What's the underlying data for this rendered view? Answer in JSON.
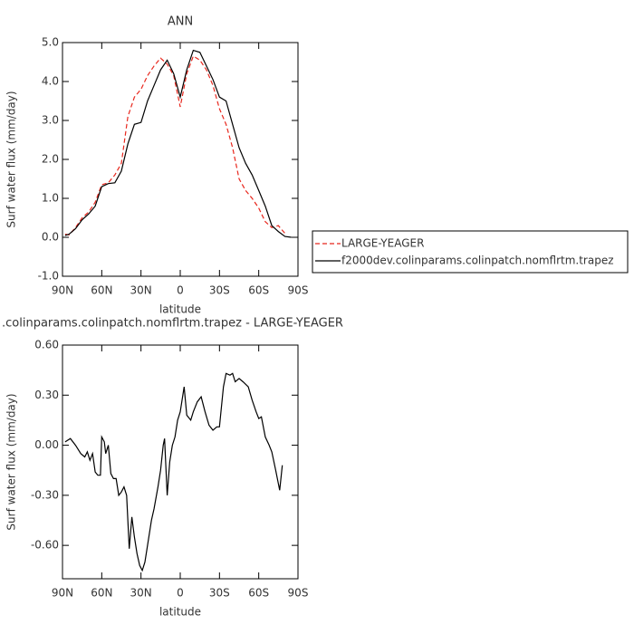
{
  "chart_data": [
    {
      "type": "line",
      "title": "ANN",
      "xlabel": "latitude",
      "ylabel": "Surf water flux (mm/day)",
      "x": [
        88,
        85,
        80,
        75,
        70,
        65,
        60,
        55,
        50,
        45,
        40,
        35,
        30,
        25,
        20,
        15,
        10,
        5,
        0,
        -5,
        -10,
        -15,
        -20,
        -25,
        -30,
        -35,
        -40,
        -45,
        -50,
        -55,
        -60,
        -65,
        -70,
        -75,
        -80,
        -85
      ],
      "series": [
        {
          "name": "LARGE-YEAGER",
          "color": "#e8261c",
          "linestyle": "dashed",
          "values": [
            0.08,
            0.06,
            0.25,
            0.5,
            0.65,
            0.9,
            1.35,
            1.4,
            1.6,
            1.9,
            3.1,
            3.6,
            3.8,
            4.15,
            4.4,
            4.6,
            4.45,
            4.15,
            3.35,
            4.2,
            4.65,
            4.55,
            4.3,
            3.9,
            3.3,
            2.9,
            2.3,
            1.5,
            1.2,
            1.0,
            0.75,
            0.4,
            0.25,
            0.3,
            0.1,
            null
          ]
        },
        {
          "name": "f2000dev.colinparams.colinpatch.nomflrtm.trapez",
          "color": "#000000",
          "linestyle": "solid",
          "values": [
            0.05,
            0.08,
            0.22,
            0.45,
            0.6,
            0.8,
            1.3,
            1.38,
            1.4,
            1.7,
            2.4,
            2.9,
            2.95,
            3.5,
            3.9,
            4.3,
            4.55,
            4.2,
            3.6,
            4.3,
            4.8,
            4.75,
            4.4,
            4.05,
            3.6,
            3.5,
            2.9,
            2.3,
            1.9,
            1.6,
            1.2,
            0.8,
            0.3,
            0.15,
            0.02,
            0.0
          ]
        }
      ],
      "xlim": [
        90,
        -90
      ],
      "xticks": [
        {
          "value": 90,
          "label": "90N"
        },
        {
          "value": 60,
          "label": "60N"
        },
        {
          "value": 30,
          "label": "30N"
        },
        0,
        {
          "value": -30,
          "label": "30S"
        },
        {
          "value": -60,
          "label": "60S"
        },
        {
          "value": -90,
          "label": "90S"
        }
      ],
      "ylim": [
        -1,
        5
      ],
      "yticks": [
        {
          "value": -1,
          "label": "-1.0"
        },
        {
          "value": 0,
          "label": "0.0"
        },
        {
          "value": 1,
          "label": "1.0"
        },
        {
          "value": 2,
          "label": "2.0"
        },
        {
          "value": 3,
          "label": "3.0"
        },
        {
          "value": 4,
          "label": "4.0"
        },
        {
          "value": 5,
          "label": "5.0"
        }
      ],
      "legend": "right"
    },
    {
      "type": "line",
      "title": ".colinparams.colinpatch.nomflrtm.trapez - LARGE-YEAGER",
      "xlabel": "latitude",
      "ylabel": "Surf water flux (mm/day)",
      "x": [
        88,
        84,
        80,
        76,
        73,
        71,
        69,
        67,
        65,
        63,
        61,
        60,
        58,
        57,
        55,
        53,
        51,
        49,
        47,
        45,
        43,
        41,
        39,
        37,
        35,
        33,
        31,
        29,
        27,
        25,
        22,
        20,
        17,
        15,
        13,
        12,
        10,
        8,
        6,
        4,
        2,
        0,
        -3,
        -5,
        -8,
        -10,
        -13,
        -16,
        -19,
        -22,
        -25,
        -28,
        -30,
        -33,
        -35,
        -38,
        -40,
        -42,
        -45,
        -48,
        -52,
        -55,
        -58,
        -60,
        -62,
        -65,
        -68,
        -70,
        -73,
        -76,
        -78
      ],
      "series": [
        {
          "color": "#000000",
          "linestyle": "solid",
          "values": [
            0.02,
            0.04,
            0.0,
            -0.05,
            -0.07,
            -0.04,
            -0.09,
            -0.05,
            -0.16,
            -0.18,
            -0.18,
            0.05,
            0.02,
            -0.05,
            0.0,
            -0.17,
            -0.2,
            -0.2,
            -0.3,
            -0.28,
            -0.25,
            -0.3,
            -0.62,
            -0.43,
            -0.55,
            -0.65,
            -0.72,
            -0.75,
            -0.7,
            -0.6,
            -0.45,
            -0.38,
            -0.25,
            -0.15,
            0.0,
            0.04,
            -0.3,
            -0.1,
            0.0,
            0.05,
            0.15,
            0.2,
            0.35,
            0.18,
            0.15,
            0.2,
            0.26,
            0.29,
            0.2,
            0.12,
            0.09,
            0.11,
            0.11,
            0.35,
            0.43,
            0.42,
            0.43,
            0.38,
            0.4,
            0.38,
            0.35,
            0.27,
            0.2,
            0.16,
            0.17,
            0.05,
            0.0,
            -0.04,
            -0.15,
            -0.27,
            -0.12
          ]
        }
      ],
      "xlim": [
        90,
        -90
      ],
      "xticks": [
        {
          "value": 90,
          "label": "90N"
        },
        {
          "value": 60,
          "label": "60N"
        },
        {
          "value": 30,
          "label": "30N"
        },
        0,
        {
          "value": -30,
          "label": "30S"
        },
        {
          "value": -60,
          "label": "60S"
        },
        {
          "value": -90,
          "label": "90S"
        }
      ],
      "ylim": [
        -0.8,
        0.6
      ],
      "yticks": [
        {
          "value": -0.6,
          "label": "-0.60"
        },
        {
          "value": -0.3,
          "label": "-0.30"
        },
        {
          "value": 0,
          "label": "0.00"
        },
        {
          "value": 0.3,
          "label": "0.30"
        },
        {
          "value": 0.6,
          "label": "0.60"
        }
      ]
    }
  ]
}
